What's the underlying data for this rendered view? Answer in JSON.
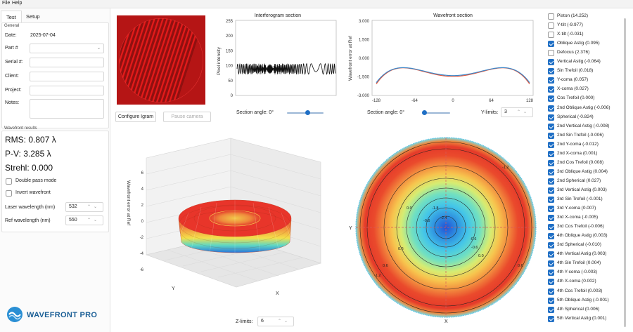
{
  "menu": {
    "file": "File",
    "help": "Help"
  },
  "tabs": [
    {
      "label": "Test"
    },
    {
      "label": "Setup"
    }
  ],
  "general": {
    "title": "General",
    "date_label": "Date:",
    "date_value": "2025-07-04",
    "part_label": "Part #",
    "serial_label": "Serial #:",
    "client_label": "Client:",
    "project_label": "Project:",
    "notes_label": "Notes:"
  },
  "results": {
    "title": "Wavefront results",
    "rms": "RMS: 0.807 λ",
    "pv": "P-V: 3.285 λ",
    "strehl": "Strehl: 0.000",
    "double_pass": "Double pass mode",
    "invert": "Invert wavefront",
    "laser_label": "Laser wavelength (nm)",
    "laser_value": "532",
    "ref_label": "Ref wavelength (nm)",
    "ref_value": "550"
  },
  "logo": {
    "text": "WAVEFRONT PRO"
  },
  "buttons": {
    "configure": "Configure Igram",
    "pause": "Pause camera"
  },
  "interferogram_section": {
    "title": "Interferogram section",
    "ylabel": "Pixel intensity",
    "yticks": [
      "255",
      "200",
      "150",
      "100",
      "50",
      "0"
    ],
    "section_angle": "Section angle: 0°",
    "slider_value": 0.58
  },
  "wavefront_section": {
    "title": "Wavefront section",
    "ylabel": "Wavefront error at Ref",
    "yticks": [
      "3.000",
      "1.500",
      "0.000",
      "-1.500",
      "-3.000"
    ],
    "xticks": [
      "-128",
      "-64",
      "0",
      "64",
      "128"
    ],
    "section_angle": "Section angle: 0°",
    "slider_value": 0.0,
    "ylimits_label": "Y-limits:",
    "ylimits_value": "3",
    "colors": {
      "series_a": "#e5573a",
      "series_b": "#3b86c8"
    }
  },
  "plot3d": {
    "zlabel": "Wavefront error at Ref",
    "zticks": [
      "6",
      "4",
      "2",
      "0",
      "-2",
      "-4",
      "-6"
    ],
    "xaxis": "X",
    "yaxis": "Y",
    "zlimits_label": "Z-limits:",
    "zlimits_value": "6"
  },
  "contour": {
    "xaxis": "X",
    "yaxis": "Y",
    "labels": [
      "-1.2",
      "-0.6",
      "0.0",
      "0.6",
      "-0.6",
      "0.0",
      "0.6",
      "-1.8",
      "-2.4",
      "0.6",
      "-0.6",
      "-1.2"
    ]
  },
  "zernike": [
    {
      "label": "Piston (14.252)",
      "checked": false
    },
    {
      "label": "Y-tilt (-9.977)",
      "checked": false
    },
    {
      "label": "X-tilt (-0.031)",
      "checked": false
    },
    {
      "label": "Oblique Astig (0.095)",
      "checked": true
    },
    {
      "label": "Defocus (2.376)",
      "checked": false
    },
    {
      "label": "Vertical Astig (-0.064)",
      "checked": true
    },
    {
      "label": "Sin Trefoil (0.018)",
      "checked": true
    },
    {
      "label": "Y-coma (0.057)",
      "checked": true
    },
    {
      "label": "X-coma (0.027)",
      "checked": true
    },
    {
      "label": "Cos Trefoil (0.000)",
      "checked": true
    },
    {
      "label": "2nd Oblique Astig (-0.006)",
      "checked": true
    },
    {
      "label": "Spherical (-0.824)",
      "checked": true
    },
    {
      "label": "2nd Vertical Astig (-0.008)",
      "checked": true
    },
    {
      "label": "2nd Sin Trefoil (-0.006)",
      "checked": true
    },
    {
      "label": "2nd Y-coma (-0.012)",
      "checked": true
    },
    {
      "label": "2nd X-coma (0.001)",
      "checked": true
    },
    {
      "label": "2nd Cos Trefoil (0.008)",
      "checked": true
    },
    {
      "label": "3rd Oblique Astig (0.004)",
      "checked": true
    },
    {
      "label": "2nd Spherical (0.027)",
      "checked": true
    },
    {
      "label": "3rd Vertical Astig (0.003)",
      "checked": true
    },
    {
      "label": "3rd Sin Trefoil (-0.001)",
      "checked": true
    },
    {
      "label": "3rd Y-coma (0.007)",
      "checked": true
    },
    {
      "label": "3rd X-coma (-0.005)",
      "checked": true
    },
    {
      "label": "3rd Cos Trefoil (-0.006)",
      "checked": true
    },
    {
      "label": "4th Oblique Astig (0.003)",
      "checked": true
    },
    {
      "label": "3rd Spherical (-0.010)",
      "checked": true
    },
    {
      "label": "4th Vertical Astig (0.003)",
      "checked": true
    },
    {
      "label": "4th Sin Trefoil (0.004)",
      "checked": true
    },
    {
      "label": "4th Y-coma (-0.003)",
      "checked": true
    },
    {
      "label": "4th X-coma (0.002)",
      "checked": true
    },
    {
      "label": "4th Cos Trefoil (0.003)",
      "checked": true
    },
    {
      "label": "5th Oblique Astig (-0.001)",
      "checked": true
    },
    {
      "label": "4th Spherical (0.006)",
      "checked": true
    },
    {
      "label": "5th Vertical Astig (0.001)",
      "checked": true
    }
  ]
}
